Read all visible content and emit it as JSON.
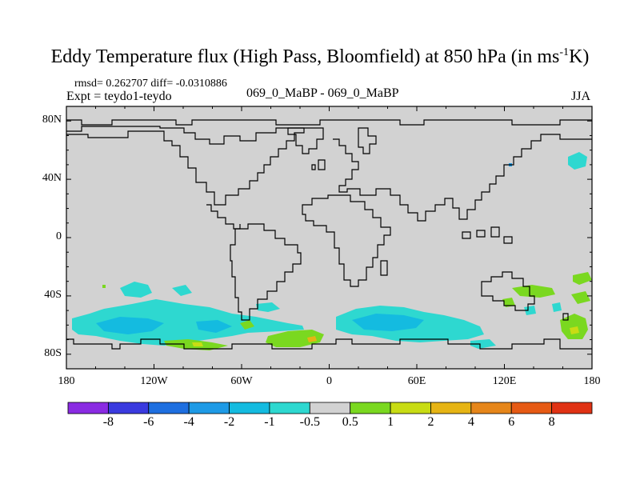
{
  "title": {
    "main": "Eddy Temperature flux (High Pass, Bloomfield) at 850 hPa (in ms",
    "sup": "-1",
    "end": "K)"
  },
  "stats_line": "rmsd= 0.262707 diff= -0.0310886",
  "experiment": "Expt = teydo1-teydo",
  "run_label": "069_0_MaBP - 069_0_MaBP",
  "season": "JJA",
  "map": {
    "projection": "cylindrical-equidistant",
    "lat_range": [
      -90,
      90
    ],
    "lon_range": [
      -180,
      180
    ],
    "land_color": "#d2d2d2",
    "lat_ticks": [
      {
        "value": 80,
        "label": "80N"
      },
      {
        "value": 40,
        "label": "40N"
      },
      {
        "value": 0,
        "label": "0"
      },
      {
        "value": -40,
        "label": "40S"
      },
      {
        "value": -80,
        "label": "80S"
      }
    ],
    "lon_ticks": [
      {
        "value": -180,
        "label": "180"
      },
      {
        "value": -120,
        "label": "120W"
      },
      {
        "value": -60,
        "label": "60W"
      },
      {
        "value": 0,
        "label": "0"
      },
      {
        "value": 60,
        "label": "60E"
      },
      {
        "value": 120,
        "label": "120E"
      },
      {
        "value": 180,
        "label": "180"
      }
    ]
  },
  "colorbar": {
    "levels": [
      "-8",
      "-6",
      "-4",
      "-2",
      "-1",
      "-0.5",
      "0.5",
      "1",
      "2",
      "4",
      "6",
      "8"
    ],
    "colors": [
      "#8a2be2",
      "#3a3adf",
      "#1e6fe0",
      "#1e9ae6",
      "#14bbe0",
      "#2ed8d0",
      "#d2d2d2",
      "#7ad820",
      "#c8dc14",
      "#e6b414",
      "#e6861a",
      "#e65a14",
      "#e03214"
    ]
  },
  "chart_data": {
    "type": "heatmap",
    "title": "Eddy Temperature flux (High Pass, Bloomfield) at 850 hPa (in ms-1K)",
    "season": "JJA",
    "rmsd": 0.262707,
    "diff": -0.0310886,
    "units": "ms-1K",
    "contour_levels": [
      -8,
      -6,
      -4,
      -2,
      -1,
      -0.5,
      0.5,
      1,
      2,
      4,
      6,
      8
    ],
    "anomaly_regions": [
      {
        "name": "south-pacific-band",
        "lon": [
          -175,
          -95
        ],
        "lat": [
          -68,
          -45
        ],
        "class": "-1 to -0.5"
      },
      {
        "name": "south-pacific-core",
        "lon": [
          -150,
          -120
        ],
        "lat": [
          -65,
          -55
        ],
        "class": "-2 to -1"
      },
      {
        "name": "southeast-pacific",
        "lon": [
          -95,
          -55
        ],
        "lat": [
          -65,
          -55
        ],
        "class": "-1 to -0.5"
      },
      {
        "name": "south-atlantic-positive",
        "lon": [
          -45,
          -5
        ],
        "lat": [
          -78,
          -68
        ],
        "class": "0.5 to 1"
      },
      {
        "name": "south-atlantic-small-positive",
        "lon": [
          -5,
          5
        ],
        "lat": [
          -75,
          -70
        ],
        "class": "2 to 4"
      },
      {
        "name": "southern-ocean-africa",
        "lon": [
          5,
          85
        ],
        "lat": [
          -70,
          -50
        ],
        "class": "-1 to -0.5"
      },
      {
        "name": "southern-ocean-africa-core",
        "lon": [
          20,
          65
        ],
        "lat": [
          -66,
          -56
        ],
        "class": "-2 to -1"
      },
      {
        "name": "south-indian-tail",
        "lon": [
          85,
          105
        ],
        "lat": [
          -72,
          -68
        ],
        "class": "-1 to -0.5"
      },
      {
        "name": "tasman-positive",
        "lon": [
          135,
          165
        ],
        "lat": [
          -42,
          -36
        ],
        "class": "0.5 to 1"
      },
      {
        "name": "southwest-pacific-positive",
        "lon": [
          160,
          178
        ],
        "lat": [
          -32,
          -26
        ],
        "class": "0.5 to 1"
      },
      {
        "name": "new-zealand-positive",
        "lon": [
          158,
          178
        ],
        "lat": [
          -68,
          -52
        ],
        "class": "0.5 to 1"
      },
      {
        "name": "new-zealand-small-positive",
        "lon": [
          163,
          170
        ],
        "lat": [
          -62,
          -56
        ],
        "class": "1 to 2"
      },
      {
        "name": "north-pacific-negative",
        "lon": [
          163,
          172
        ],
        "lat": [
          52,
          58
        ],
        "class": "-1 to -0.5"
      }
    ]
  }
}
